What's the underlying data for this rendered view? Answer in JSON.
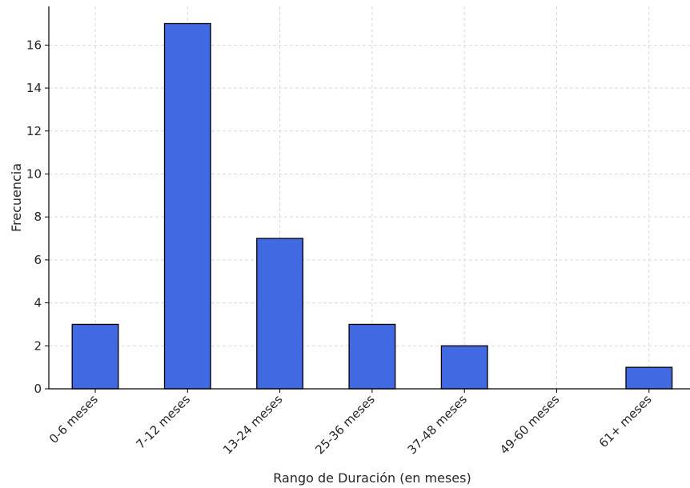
{
  "chart_data": {
    "type": "bar",
    "title": "",
    "xlabel": "Rango de Duración (en meses)",
    "ylabel": "Frecuencia",
    "categories": [
      "0-6 meses",
      "7-12 meses",
      "13-24 meses",
      "25-36 meses",
      "37-48 meses",
      "49-60 meses",
      "61+ meses"
    ],
    "values": [
      3,
      17,
      7,
      3,
      2,
      0,
      1
    ],
    "ylim": [
      0,
      17.8
    ],
    "yticks": [
      0,
      2,
      4,
      6,
      8,
      10,
      12,
      14,
      16
    ],
    "grid": true,
    "bar_color": "#4169e1",
    "bar_edge_color": "#000000",
    "grid_color": "#d9d9d9"
  }
}
